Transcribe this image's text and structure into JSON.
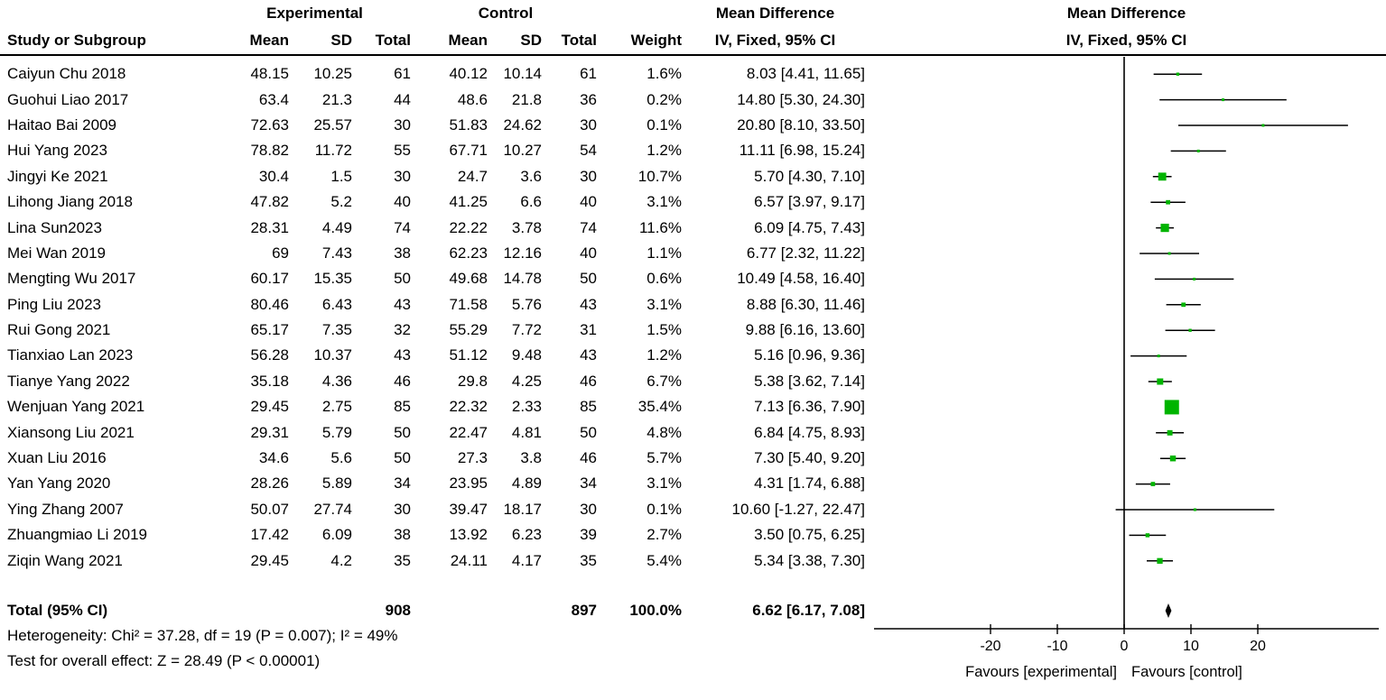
{
  "header": {
    "study": "Study or Subgroup",
    "experimental": "Experimental",
    "control": "Control",
    "mean": "Mean",
    "sd": "SD",
    "total": "Total",
    "weight": "Weight",
    "mean_difference": "Mean Difference",
    "method_ci": "IV, Fixed, 95% CI"
  },
  "chart_data": {
    "type": "forest",
    "effect_measure": "Mean Difference",
    "model": "IV, Fixed, 95% CI",
    "colors": {
      "marker": "#00b400",
      "line": "#000000",
      "diamond": "#000000"
    },
    "studies": [
      {
        "name": "Caiyun Chu 2018",
        "e_mean": "48.15",
        "e_sd": "10.25",
        "e_n": "61",
        "c_mean": "40.12",
        "c_sd": "10.14",
        "c_n": "61",
        "w_label": "1.6%",
        "ci_label": "8.03 [4.41, 11.65]",
        "md": 8.03,
        "lo": 4.41,
        "hi": 11.65,
        "w": 1.6
      },
      {
        "name": "Guohui Liao 2017",
        "e_mean": "63.4",
        "e_sd": "21.3",
        "e_n": "44",
        "c_mean": "48.6",
        "c_sd": "21.8",
        "c_n": "36",
        "w_label": "0.2%",
        "ci_label": "14.80 [5.30, 24.30]",
        "md": 14.8,
        "lo": 5.3,
        "hi": 24.3,
        "w": 0.2
      },
      {
        "name": "Haitao Bai 2009",
        "e_mean": "72.63",
        "e_sd": "25.57",
        "e_n": "30",
        "c_mean": "51.83",
        "c_sd": "24.62",
        "c_n": "30",
        "w_label": "0.1%",
        "ci_label": "20.80 [8.10, 33.50]",
        "md": 20.8,
        "lo": 8.1,
        "hi": 33.5,
        "w": 0.1
      },
      {
        "name": "Hui Yang 2023",
        "e_mean": "78.82",
        "e_sd": "11.72",
        "e_n": "55",
        "c_mean": "67.71",
        "c_sd": "10.27",
        "c_n": "54",
        "w_label": "1.2%",
        "ci_label": "11.11 [6.98, 15.24]",
        "md": 11.11,
        "lo": 6.98,
        "hi": 15.24,
        "w": 1.2
      },
      {
        "name": "Jingyi Ke 2021",
        "e_mean": "30.4",
        "e_sd": "1.5",
        "e_n": "30",
        "c_mean": "24.7",
        "c_sd": "3.6",
        "c_n": "30",
        "w_label": "10.7%",
        "ci_label": "5.70 [4.30, 7.10]",
        "md": 5.7,
        "lo": 4.3,
        "hi": 7.1,
        "w": 10.7
      },
      {
        "name": "Lihong Jiang 2018",
        "e_mean": "47.82",
        "e_sd": "5.2",
        "e_n": "40",
        "c_mean": "41.25",
        "c_sd": "6.6",
        "c_n": "40",
        "w_label": "3.1%",
        "ci_label": "6.57 [3.97, 9.17]",
        "md": 6.57,
        "lo": 3.97,
        "hi": 9.17,
        "w": 3.1
      },
      {
        "name": "Lina Sun2023",
        "e_mean": "28.31",
        "e_sd": "4.49",
        "e_n": "74",
        "c_mean": "22.22",
        "c_sd": "3.78",
        "c_n": "74",
        "w_label": "11.6%",
        "ci_label": "6.09 [4.75, 7.43]",
        "md": 6.09,
        "lo": 4.75,
        "hi": 7.43,
        "w": 11.6
      },
      {
        "name": "Mei Wan 2019",
        "e_mean": "69",
        "e_sd": "7.43",
        "e_n": "38",
        "c_mean": "62.23",
        "c_sd": "12.16",
        "c_n": "40",
        "w_label": "1.1%",
        "ci_label": "6.77 [2.32, 11.22]",
        "md": 6.77,
        "lo": 2.32,
        "hi": 11.22,
        "w": 1.1
      },
      {
        "name": "Mengting Wu 2017",
        "e_mean": "60.17",
        "e_sd": "15.35",
        "e_n": "50",
        "c_mean": "49.68",
        "c_sd": "14.78",
        "c_n": "50",
        "w_label": "0.6%",
        "ci_label": "10.49 [4.58, 16.40]",
        "md": 10.49,
        "lo": 4.58,
        "hi": 16.4,
        "w": 0.6
      },
      {
        "name": "Ping Liu 2023",
        "e_mean": "80.46",
        "e_sd": "6.43",
        "e_n": "43",
        "c_mean": "71.58",
        "c_sd": "5.76",
        "c_n": "43",
        "w_label": "3.1%",
        "ci_label": "8.88 [6.30, 11.46]",
        "md": 8.88,
        "lo": 6.3,
        "hi": 11.46,
        "w": 3.1
      },
      {
        "name": "Rui Gong 2021",
        "e_mean": "65.17",
        "e_sd": "7.35",
        "e_n": "32",
        "c_mean": "55.29",
        "c_sd": "7.72",
        "c_n": "31",
        "w_label": "1.5%",
        "ci_label": "9.88 [6.16, 13.60]",
        "md": 9.88,
        "lo": 6.16,
        "hi": 13.6,
        "w": 1.5
      },
      {
        "name": "Tianxiao Lan 2023",
        "e_mean": "56.28",
        "e_sd": "10.37",
        "e_n": "43",
        "c_mean": "51.12",
        "c_sd": "9.48",
        "c_n": "43",
        "w_label": "1.2%",
        "ci_label": "5.16 [0.96, 9.36]",
        "md": 5.16,
        "lo": 0.96,
        "hi": 9.36,
        "w": 1.2
      },
      {
        "name": "Tianye Yang 2022",
        "e_mean": "35.18",
        "e_sd": "4.36",
        "e_n": "46",
        "c_mean": "29.8",
        "c_sd": "4.25",
        "c_n": "46",
        "w_label": "6.7%",
        "ci_label": "5.38 [3.62, 7.14]",
        "md": 5.38,
        "lo": 3.62,
        "hi": 7.14,
        "w": 6.7
      },
      {
        "name": "Wenjuan Yang 2021",
        "e_mean": "29.45",
        "e_sd": "2.75",
        "e_n": "85",
        "c_mean": "22.32",
        "c_sd": "2.33",
        "c_n": "85",
        "w_label": "35.4%",
        "ci_label": "7.13 [6.36, 7.90]",
        "md": 7.13,
        "lo": 6.36,
        "hi": 7.9,
        "w": 35.4
      },
      {
        "name": "Xiansong Liu 2021",
        "e_mean": "29.31",
        "e_sd": "5.79",
        "e_n": "50",
        "c_mean": "22.47",
        "c_sd": "4.81",
        "c_n": "50",
        "w_label": "4.8%",
        "ci_label": "6.84 [4.75, 8.93]",
        "md": 6.84,
        "lo": 4.75,
        "hi": 8.93,
        "w": 4.8
      },
      {
        "name": "Xuan Liu 2016",
        "e_mean": "34.6",
        "e_sd": "5.6",
        "e_n": "50",
        "c_mean": "27.3",
        "c_sd": "3.8",
        "c_n": "46",
        "w_label": "5.7%",
        "ci_label": "7.30 [5.40, 9.20]",
        "md": 7.3,
        "lo": 5.4,
        "hi": 9.2,
        "w": 5.7
      },
      {
        "name": "Yan Yang 2020",
        "e_mean": "28.26",
        "e_sd": "5.89",
        "e_n": "34",
        "c_mean": "23.95",
        "c_sd": "4.89",
        "c_n": "34",
        "w_label": "3.1%",
        "ci_label": "4.31 [1.74, 6.88]",
        "md": 4.31,
        "lo": 1.74,
        "hi": 6.88,
        "w": 3.1
      },
      {
        "name": "Ying Zhang 2007",
        "e_mean": "50.07",
        "e_sd": "27.74",
        "e_n": "30",
        "c_mean": "39.47",
        "c_sd": "18.17",
        "c_n": "30",
        "w_label": "0.1%",
        "ci_label": "10.60 [-1.27, 22.47]",
        "md": 10.6,
        "lo": -1.27,
        "hi": 22.47,
        "w": 0.1
      },
      {
        "name": "Zhuangmiao Li 2019",
        "e_mean": "17.42",
        "e_sd": "6.09",
        "e_n": "38",
        "c_mean": "13.92",
        "c_sd": "6.23",
        "c_n": "39",
        "w_label": "2.7%",
        "ci_label": "3.50 [0.75, 6.25]",
        "md": 3.5,
        "lo": 0.75,
        "hi": 6.25,
        "w": 2.7
      },
      {
        "name": "Ziqin Wang 2021",
        "e_mean": "29.45",
        "e_sd": "4.2",
        "e_n": "35",
        "c_mean": "24.11",
        "c_sd": "4.17",
        "c_n": "35",
        "w_label": "5.4%",
        "ci_label": "5.34 [3.38, 7.30]",
        "md": 5.34,
        "lo": 3.38,
        "hi": 7.3,
        "w": 5.4
      }
    ],
    "total": {
      "name": "Total (95% CI)",
      "e_n": "908",
      "c_n": "897",
      "w_label": "100.0%",
      "ci_label": "6.62 [6.17, 7.08]",
      "md": 6.62,
      "lo": 6.17,
      "hi": 7.08
    },
    "heterogeneity": "Heterogeneity: Chi² = 37.28, df = 19 (P = 0.007); I² = 49%",
    "overall_effect": "Test for overall effect: Z = 28.49 (P < 0.00001)",
    "axis": {
      "ticks": [
        -20,
        -10,
        0,
        10,
        20
      ],
      "tick_labels": [
        "-20",
        "-10",
        "0",
        "10",
        "20"
      ],
      "min": -36,
      "max": 38
    },
    "favours_left": "Favours [experimental]",
    "favours_right": "Favours [control]"
  }
}
